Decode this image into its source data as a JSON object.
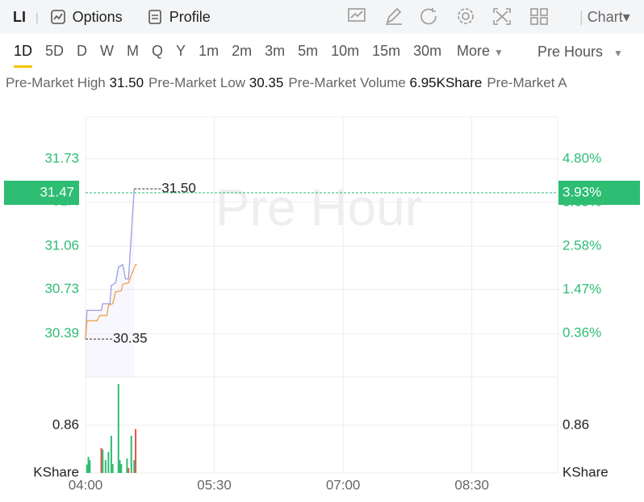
{
  "toolbar": {
    "symbol": "LI",
    "items": [
      "Options",
      "Profile"
    ],
    "chart_menu": "Chart"
  },
  "tabs": {
    "items": [
      "1D",
      "5D",
      "D",
      "W",
      "M",
      "Q",
      "Y",
      "1m",
      "2m",
      "3m",
      "5m",
      "10m",
      "15m",
      "30m"
    ],
    "active": 0,
    "more": "More",
    "session": "Pre Hours"
  },
  "stats": [
    {
      "label": "Pre-Market High",
      "value": "31.50"
    },
    {
      "label": "Pre-Market Low",
      "value": "30.35"
    },
    {
      "label": "Pre-Market Volume",
      "value": "6.95KShare"
    },
    {
      "label": "Pre-Market A"
    }
  ],
  "chart_data": {
    "type": "line",
    "watermark": "Pre Hour",
    "xlim": [
      240,
      570
    ],
    "xticks": [
      {
        "value": 240,
        "label": "04:00"
      },
      {
        "value": 330,
        "label": "05:30"
      },
      {
        "value": 420,
        "label": "07:00"
      },
      {
        "value": 510,
        "label": "08:30"
      }
    ],
    "ylim": [
      30.06,
      32.05
    ],
    "yticks": [
      30.39,
      30.73,
      31.06,
      31.4,
      31.73
    ],
    "y2lim": [
      -0.75,
      5.87
    ],
    "y2ticks": [
      {
        "value": 0.36,
        "label": "0.36%"
      },
      {
        "value": 1.47,
        "label": "1.47%"
      },
      {
        "value": 2.58,
        "label": "2.58%"
      },
      {
        "value": 3.69,
        "label": "3.69%"
      },
      {
        "value": 4.8,
        "label": "4.80%"
      }
    ],
    "grid": true,
    "series": [
      {
        "color": "#9a9fe0",
        "x": [
          240,
          241,
          251,
          252,
          257,
          258,
          261,
          263,
          266,
          268,
          270,
          272,
          274
        ],
        "values": [
          30.35,
          30.57,
          30.57,
          30.62,
          30.62,
          30.76,
          30.78,
          30.9,
          30.92,
          30.81,
          30.81,
          31.15,
          31.5
        ]
      },
      {
        "color": "#f0a04b",
        "x": [
          240,
          241,
          248,
          250,
          255,
          256,
          259,
          261,
          265,
          266,
          270,
          272,
          275,
          276
        ],
        "values": [
          30.35,
          30.49,
          30.49,
          30.53,
          30.53,
          30.61,
          30.62,
          30.71,
          30.72,
          30.77,
          30.78,
          30.84,
          30.92,
          30.92
        ]
      }
    ],
    "last_price": {
      "value": 31.47,
      "label": "31.47",
      "change": {
        "value": 3.93,
        "label": "3.93%"
      }
    },
    "annotations": [
      {
        "x": 274,
        "y": 31.5,
        "label": "31.50"
      },
      {
        "x": 240,
        "y": 30.35,
        "label": "30.35"
      }
    ],
    "volume": {
      "unit": "KShare",
      "ylim": [
        0,
        1.73
      ],
      "yticks": [
        0.86
      ],
      "x": [
        241,
        242,
        243,
        251,
        252,
        254,
        256,
        258,
        259,
        263,
        264,
        265,
        269,
        270,
        272,
        274,
        275
      ],
      "values": [
        0.15,
        0.29,
        0.23,
        0.45,
        0.42,
        0.23,
        0.38,
        0.67,
        0.16,
        1.6,
        0.23,
        0.16,
        0.26,
        0.09,
        0.67,
        0.23,
        0.79
      ],
      "colors": [
        "#2dbd73",
        "#2dbd73",
        "#2dbd73",
        "#e8534a",
        "#2dbd73",
        "#2dbd73",
        "#2dbd73",
        "#2dbd73",
        "#2dbd73",
        "#2dbd73",
        "#2dbd73",
        "#2dbd73",
        "#2dbd73",
        "#e8534a",
        "#2dbd73",
        "#2dbd73",
        "#e8534a"
      ]
    }
  }
}
